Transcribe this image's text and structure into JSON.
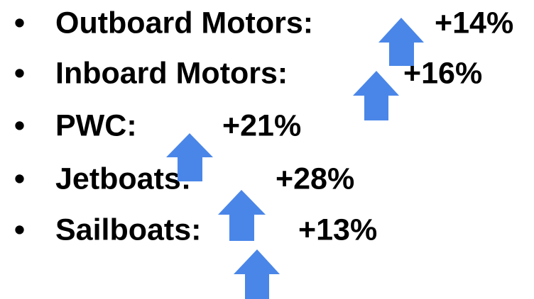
{
  "items": [
    {
      "label": "Outboard Motors:",
      "value": "+14%"
    },
    {
      "label": "Inboard Motors:",
      "value": "+16%"
    },
    {
      "label": "PWC:",
      "value": "+21%"
    },
    {
      "label": "Jetboats:",
      "value": "+28%"
    },
    {
      "label": "Sailboats:",
      "value": "+13%"
    }
  ]
}
